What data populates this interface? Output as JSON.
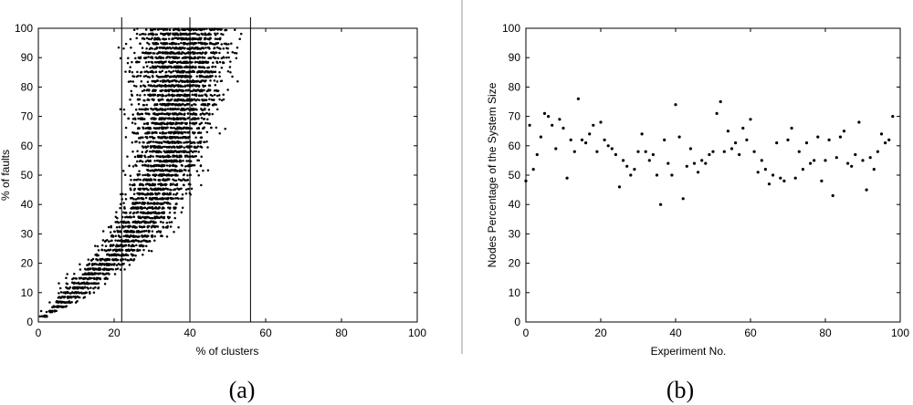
{
  "chart_data": [
    {
      "type": "scatter",
      "caption": "(a)",
      "xlabel": "% of clusters",
      "ylabel": "% of faults",
      "xlim": [
        0,
        100
      ],
      "ylim": [
        0,
        100
      ],
      "xticks": [
        0,
        20,
        40,
        60,
        80,
        100
      ],
      "yticks": [
        0,
        10,
        20,
        30,
        40,
        50,
        60,
        70,
        80,
        90,
        100
      ],
      "grid": false,
      "vertical_lines": [
        22,
        40,
        56
      ],
      "band_summary": [
        {
          "y": 2,
          "x_min": 0,
          "x_max": 3
        },
        {
          "y": 5,
          "x_min": 1,
          "x_max": 9
        },
        {
          "y": 10,
          "x_min": 3,
          "x_max": 16
        },
        {
          "y": 15,
          "x_min": 6,
          "x_max": 21
        },
        {
          "y": 20,
          "x_min": 9,
          "x_max": 27
        },
        {
          "y": 25,
          "x_min": 12,
          "x_max": 32
        },
        {
          "y": 30,
          "x_min": 15,
          "x_max": 37
        },
        {
          "y": 40,
          "x_min": 19,
          "x_max": 41
        },
        {
          "y": 50,
          "x_min": 21,
          "x_max": 45
        },
        {
          "y": 60,
          "x_min": 21,
          "x_max": 49
        },
        {
          "y": 70,
          "x_min": 19,
          "x_max": 52
        },
        {
          "y": 80,
          "x_min": 20,
          "x_max": 54
        },
        {
          "y": 90,
          "x_min": 19,
          "x_max": 57
        },
        {
          "y": 100,
          "x_min": 21,
          "x_max": 57
        }
      ]
    },
    {
      "type": "scatter",
      "caption": "(b)",
      "xlabel": "Experiment No.",
      "ylabel": "Nodes Percentage of the System Size",
      "xlim": [
        0,
        100
      ],
      "ylim": [
        0,
        100
      ],
      "xticks": [
        0,
        20,
        40,
        60,
        80,
        100
      ],
      "yticks": [
        0,
        10,
        20,
        30,
        40,
        50,
        60,
        70,
        80,
        90,
        100
      ],
      "grid": false,
      "x": [
        0,
        1,
        2,
        3,
        4,
        5,
        6,
        7,
        8,
        9,
        10,
        11,
        12,
        13,
        14,
        15,
        16,
        17,
        18,
        19,
        20,
        21,
        22,
        23,
        24,
        25,
        26,
        27,
        28,
        29,
        30,
        31,
        32,
        33,
        34,
        35,
        36,
        37,
        38,
        39,
        40,
        41,
        42,
        43,
        44,
        45,
        46,
        47,
        48,
        49,
        50,
        51,
        52,
        53,
        54,
        55,
        56,
        57,
        58,
        59,
        60,
        61,
        62,
        63,
        64,
        65,
        66,
        67,
        68,
        69,
        70,
        71,
        72,
        73,
        74,
        75,
        76,
        77,
        78,
        79,
        80,
        81,
        82,
        83,
        84,
        85,
        86,
        87,
        88,
        89,
        90,
        91,
        92,
        93,
        94,
        95,
        96,
        97,
        98
      ],
      "y": [
        48,
        67,
        52,
        57,
        63,
        71,
        70,
        67,
        59,
        69,
        66,
        49,
        62,
        58,
        76,
        62,
        61,
        64,
        67,
        58,
        68,
        62,
        60,
        59,
        57,
        46,
        55,
        53,
        50,
        52,
        58,
        64,
        58,
        55,
        57,
        50,
        40,
        62,
        54,
        50,
        74,
        63,
        42,
        53,
        59,
        54,
        51,
        55,
        54,
        57,
        58,
        71,
        75,
        58,
        65,
        59,
        61,
        57,
        66,
        62,
        69,
        58,
        51,
        55,
        52,
        47,
        50,
        61,
        49,
        48,
        62,
        66,
        49,
        58,
        52,
        61,
        54,
        55,
        63,
        48,
        55,
        62,
        43,
        56,
        63,
        65,
        54,
        53,
        57,
        68,
        55,
        45,
        56,
        52,
        58,
        64,
        61,
        62,
        70
      ]
    }
  ]
}
